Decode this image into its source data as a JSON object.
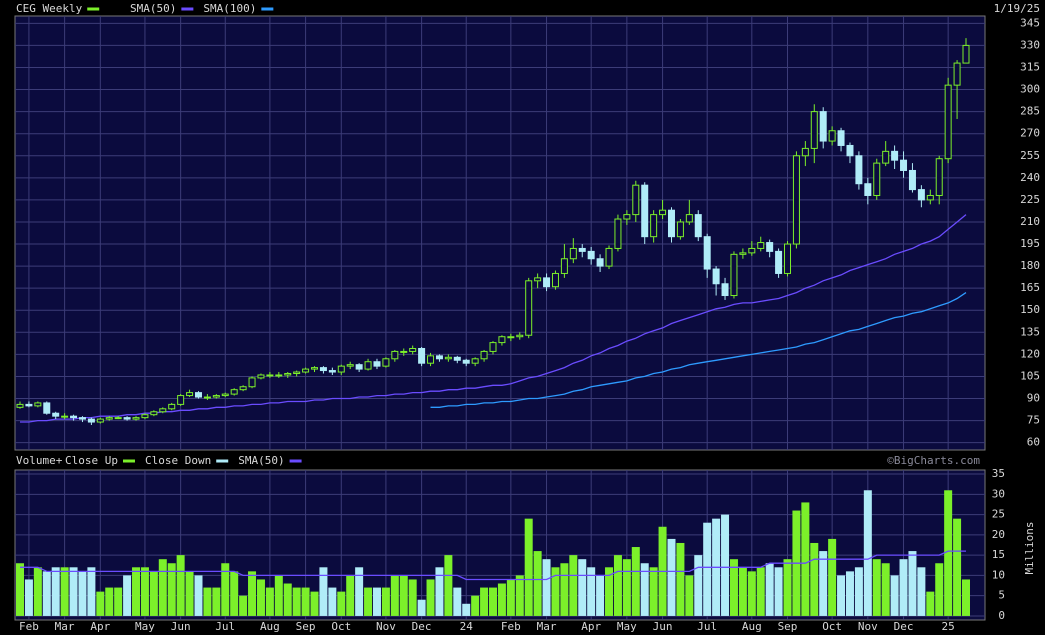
{
  "chart_data": [
    {
      "type": "candlestick",
      "title": "CEG Weekly",
      "date": "1/19/25",
      "up_color": "#7cf02a",
      "down_color": "#b0ecf8",
      "open": [
        84,
        86,
        85,
        87,
        80,
        78,
        78,
        77,
        76,
        74,
        76,
        77,
        77,
        76,
        77,
        79,
        81,
        83,
        86,
        92,
        94,
        91,
        91,
        92,
        93,
        96,
        98,
        104,
        106,
        106,
        106,
        107,
        108,
        110,
        111,
        109,
        108,
        112,
        113,
        110,
        115,
        112,
        117,
        122,
        122,
        124,
        114,
        119,
        117,
        118,
        116,
        114,
        117,
        122,
        128,
        132,
        132,
        133,
        170,
        172,
        166,
        175,
        185,
        192,
        190,
        185,
        180,
        192,
        212,
        215,
        235,
        200,
        215,
        218,
        200,
        210,
        215,
        200,
        178,
        168,
        160,
        188,
        189,
        192,
        196,
        190,
        175,
        195,
        255,
        260,
        285,
        265,
        272,
        262,
        255,
        236,
        228,
        250,
        258,
        252,
        245,
        232,
        225,
        228,
        253,
        303,
        318
      ],
      "high": [
        88,
        88,
        88,
        88,
        81,
        80,
        79,
        78,
        77,
        77,
        78,
        78,
        78,
        78,
        80,
        82,
        84,
        87,
        93,
        96,
        95,
        93,
        93,
        94,
        97,
        99,
        105,
        107,
        108,
        108,
        108,
        109,
        111,
        112,
        112,
        111,
        113,
        115,
        114,
        117,
        117,
        118,
        123,
        124,
        126,
        125,
        121,
        120,
        120,
        119,
        117,
        118,
        123,
        129,
        133,
        134,
        135,
        172,
        175,
        175,
        177,
        195,
        199,
        195,
        193,
        188,
        194,
        215,
        218,
        238,
        237,
        218,
        225,
        220,
        212,
        225,
        218,
        202,
        180,
        172,
        190,
        192,
        197,
        200,
        198,
        192,
        197,
        258,
        265,
        290,
        288,
        275,
        274,
        264,
        258,
        240,
        253,
        265,
        262,
        258,
        250,
        235,
        232,
        255,
        308,
        320,
        335
      ],
      "low": [
        83,
        84,
        84,
        79,
        76,
        76,
        75,
        74,
        72,
        73,
        75,
        76,
        75,
        75,
        76,
        78,
        80,
        82,
        85,
        91,
        90,
        89,
        90,
        91,
        92,
        95,
        97,
        103,
        104,
        104,
        104,
        105,
        107,
        108,
        107,
        106,
        106,
        110,
        108,
        109,
        110,
        111,
        115,
        119,
        120,
        112,
        112,
        115,
        115,
        114,
        112,
        112,
        115,
        120,
        126,
        129,
        130,
        131,
        165,
        163,
        164,
        172,
        182,
        186,
        181,
        176,
        178,
        190,
        208,
        210,
        195,
        196,
        212,
        196,
        198,
        208,
        197,
        172,
        160,
        157,
        158,
        185,
        187,
        190,
        186,
        172,
        173,
        192,
        248,
        250,
        260,
        262,
        258,
        250,
        232,
        222,
        225,
        248,
        246,
        240,
        230,
        220,
        222,
        222,
        250,
        280,
        318
      ],
      "close": [
        86,
        85,
        87,
        80,
        78,
        78,
        77,
        76,
        74,
        76,
        77,
        77,
        76,
        77,
        79,
        81,
        83,
        86,
        92,
        94,
        91,
        91,
        92,
        93,
        96,
        98,
        104,
        106,
        106,
        106,
        107,
        108,
        110,
        111,
        109,
        108,
        112,
        113,
        110,
        115,
        112,
        117,
        122,
        122,
        124,
        114,
        119,
        117,
        118,
        116,
        114,
        117,
        122,
        128,
        132,
        132,
        133,
        170,
        172,
        166,
        175,
        185,
        192,
        190,
        185,
        180,
        192,
        212,
        215,
        235,
        200,
        215,
        218,
        200,
        210,
        215,
        200,
        178,
        168,
        160,
        188,
        189,
        192,
        196,
        190,
        175,
        195,
        255,
        260,
        285,
        265,
        272,
        262,
        255,
        236,
        228,
        250,
        258,
        252,
        245,
        232,
        225,
        228,
        253,
        303,
        318,
        330
      ],
      "series": [
        {
          "name": "SMA(50)",
          "color": "#6a4cff",
          "values": [
            74,
            74,
            75,
            75,
            76,
            76,
            76,
            77,
            77,
            78,
            78,
            78,
            79,
            79,
            80,
            80,
            81,
            81,
            82,
            82,
            83,
            83,
            84,
            84,
            85,
            85,
            86,
            86,
            87,
            87,
            88,
            88,
            88,
            89,
            89,
            90,
            90,
            90,
            91,
            91,
            92,
            92,
            93,
            93,
            94,
            94,
            95,
            95,
            96,
            96,
            97,
            97,
            98,
            99,
            99,
            100,
            102,
            104,
            105,
            107,
            109,
            111,
            114,
            116,
            119,
            121,
            124,
            126,
            129,
            131,
            134,
            136,
            138,
            141,
            143,
            145,
            147,
            149,
            151,
            152,
            154,
            155,
            155,
            156,
            157,
            158,
            160,
            162,
            165,
            167,
            170,
            172,
            174,
            177,
            179,
            181,
            183,
            185,
            188,
            190,
            192,
            195,
            197,
            200,
            205,
            210,
            215
          ]
        },
        {
          "name": "SMA(100)",
          "color": "#2e9bff",
          "values": [
            null,
            null,
            null,
            null,
            null,
            null,
            null,
            null,
            null,
            null,
            null,
            null,
            null,
            null,
            null,
            null,
            null,
            null,
            null,
            null,
            null,
            null,
            null,
            null,
            null,
            null,
            null,
            null,
            null,
            null,
            null,
            null,
            null,
            null,
            null,
            null,
            null,
            null,
            null,
            null,
            null,
            null,
            null,
            null,
            null,
            null,
            84,
            84,
            85,
            85,
            86,
            86,
            87,
            87,
            88,
            88,
            89,
            90,
            90,
            91,
            92,
            93,
            95,
            96,
            98,
            99,
            100,
            101,
            102,
            104,
            105,
            107,
            108,
            110,
            111,
            113,
            114,
            115,
            116,
            117,
            118,
            119,
            120,
            121,
            122,
            123,
            124,
            125,
            127,
            128,
            130,
            132,
            134,
            136,
            137,
            139,
            141,
            143,
            145,
            146,
            148,
            149,
            151,
            153,
            155,
            158,
            162
          ]
        }
      ],
      "ylim": [
        55,
        350
      ],
      "yticks": [
        60,
        75,
        90,
        105,
        120,
        135,
        150,
        165,
        180,
        195,
        210,
        225,
        240,
        255,
        270,
        285,
        300,
        315,
        330,
        345
      ],
      "grid": true
    },
    {
      "type": "bar",
      "title": "Volume+",
      "watermark": "©BigCharts.com",
      "ylabel": "Millions",
      "categories": [
        null,
        "Feb",
        null,
        null,
        null,
        "Mar",
        null,
        null,
        null,
        "Apr",
        null,
        null,
        null,
        null,
        "May",
        null,
        null,
        null,
        "Jun",
        null,
        null,
        null,
        null,
        "Jul",
        null,
        null,
        null,
        null,
        "Aug",
        null,
        null,
        null,
        "Sep",
        null,
        null,
        null,
        "Oct",
        null,
        null,
        null,
        null,
        "Nov",
        null,
        null,
        null,
        "Dec",
        null,
        null,
        null,
        null,
        "24",
        null,
        null,
        null,
        null,
        "Feb",
        null,
        null,
        null,
        "Mar",
        null,
        null,
        null,
        null,
        "Apr",
        null,
        null,
        null,
        "May",
        null,
        null,
        null,
        "Jun",
        null,
        null,
        null,
        null,
        "Jul",
        null,
        null,
        null,
        null,
        "Aug",
        null,
        null,
        null,
        "Sep",
        null,
        null,
        null,
        null,
        "Oct",
        null,
        null,
        null,
        "Nov",
        null,
        null,
        null,
        "Dec",
        null,
        null,
        null,
        null,
        "25",
        null,
        null
      ],
      "series": [
        {
          "name": "Close Up",
          "color": "#7cf02a",
          "values": [
            13,
            null,
            12,
            null,
            null,
            12,
            null,
            null,
            null,
            6,
            7,
            7,
            null,
            12,
            12,
            11,
            14,
            13,
            15,
            11,
            null,
            7,
            7,
            13,
            11,
            5,
            11,
            9,
            7,
            10,
            8,
            7,
            7,
            6,
            null,
            null,
            6,
            10,
            null,
            7,
            null,
            7,
            10,
            10,
            9,
            null,
            9,
            null,
            15,
            null,
            null,
            5,
            7,
            7,
            8,
            9,
            10,
            24,
            16,
            null,
            12,
            13,
            15,
            null,
            null,
            null,
            12,
            15,
            14,
            17,
            null,
            12,
            22,
            null,
            18,
            10,
            null,
            null,
            null,
            null,
            14,
            12,
            11,
            12,
            null,
            null,
            14,
            26,
            28,
            18,
            null,
            19,
            null,
            null,
            null,
            null,
            14,
            13,
            null,
            null,
            null,
            null,
            6,
            13,
            31,
            24,
            9
          ]
        },
        {
          "name": "Close Down",
          "color": "#b0ecf8",
          "values": [
            null,
            9,
            null,
            11,
            12,
            null,
            12,
            11,
            12,
            null,
            null,
            null,
            10,
            null,
            null,
            null,
            null,
            null,
            null,
            null,
            10,
            null,
            null,
            null,
            null,
            null,
            null,
            null,
            null,
            null,
            null,
            null,
            null,
            null,
            12,
            7,
            null,
            null,
            12,
            null,
            7,
            null,
            null,
            null,
            null,
            4,
            null,
            12,
            null,
            7,
            3,
            null,
            null,
            null,
            null,
            null,
            null,
            null,
            null,
            14,
            null,
            null,
            null,
            14,
            12,
            10,
            null,
            null,
            null,
            null,
            13,
            null,
            null,
            19,
            null,
            null,
            15,
            23,
            24,
            25,
            null,
            null,
            null,
            null,
            13,
            12,
            null,
            null,
            null,
            null,
            16,
            null,
            10,
            11,
            12,
            31,
            null,
            null,
            10,
            14,
            16,
            12,
            null,
            null,
            null,
            null,
            null
          ]
        },
        {
          "name": "SMA(50)",
          "type": "line",
          "color": "#6a4cff",
          "values": [
            12,
            12,
            12,
            11,
            11,
            11,
            11,
            11,
            11,
            11,
            11,
            11,
            11,
            11,
            11,
            11,
            11,
            11,
            11,
            11,
            11,
            11,
            11,
            11,
            11,
            10,
            10,
            10,
            10,
            10,
            10,
            10,
            10,
            10,
            10,
            10,
            10,
            10,
            10,
            10,
            10,
            10,
            10,
            10,
            10,
            10,
            10,
            10,
            10,
            10,
            9,
            9,
            9,
            9,
            9,
            9,
            9,
            9,
            9,
            9,
            10,
            10,
            10,
            10,
            10,
            10,
            10,
            11,
            11,
            11,
            11,
            11,
            11,
            11,
            11,
            11,
            12,
            12,
            12,
            12,
            12,
            12,
            12,
            12,
            13,
            13,
            13,
            13,
            13,
            14,
            14,
            14,
            14,
            14,
            14,
            14,
            15,
            15,
            15,
            15,
            15,
            15,
            15,
            15,
            16,
            16,
            16
          ]
        }
      ],
      "ylim": [
        -1,
        36
      ],
      "yticks": [
        0,
        5,
        10,
        15,
        20,
        25,
        30,
        35
      ],
      "grid": true
    }
  ]
}
